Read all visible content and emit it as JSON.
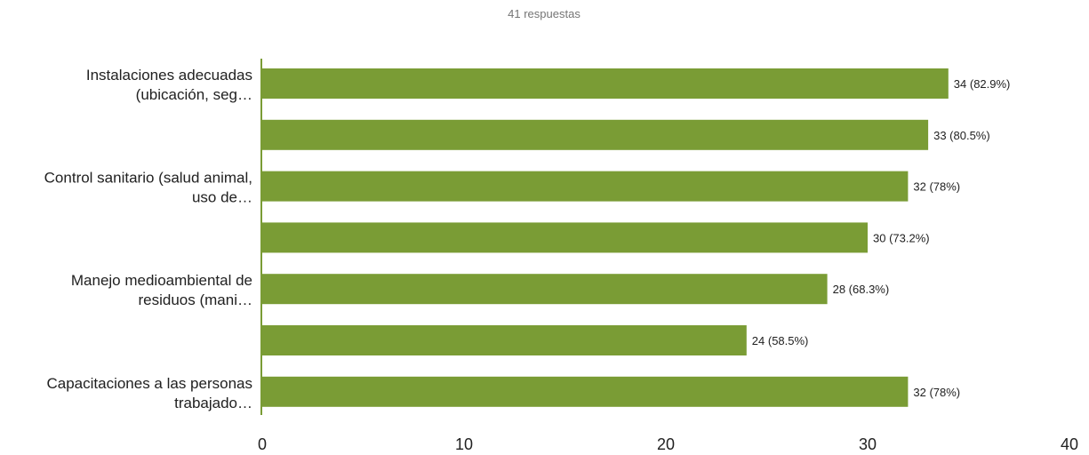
{
  "chart_data": {
    "type": "bar",
    "orientation": "horizontal",
    "subtitle": "41 respuestas",
    "categories": [
      [
        "Instalaciones adecuadas",
        "(ubicación, seg…"
      ],
      [
        "",
        ""
      ],
      [
        "Control sanitario (salud animal,",
        "uso de…"
      ],
      [
        "",
        ""
      ],
      [
        "Manejo medioambiental de",
        "residuos (mani…"
      ],
      [
        "",
        ""
      ],
      [
        "Capacitaciones a las personas",
        "trabajado…"
      ]
    ],
    "values": [
      34,
      33,
      32,
      30,
      28,
      24,
      32
    ],
    "data_labels": [
      "34 (82.9%)",
      "33 (80.5%)",
      "32 (78%)",
      "30 (73.2%)",
      "28 (68.3%)",
      "24 (58.5%)",
      "32 (78%)"
    ],
    "xlim": [
      0,
      40
    ],
    "xticks": [
      "0",
      "10",
      "20",
      "30",
      "40"
    ],
    "grid": false,
    "bar_color": "#7a9c35",
    "axis_color": "#7a9c35"
  }
}
